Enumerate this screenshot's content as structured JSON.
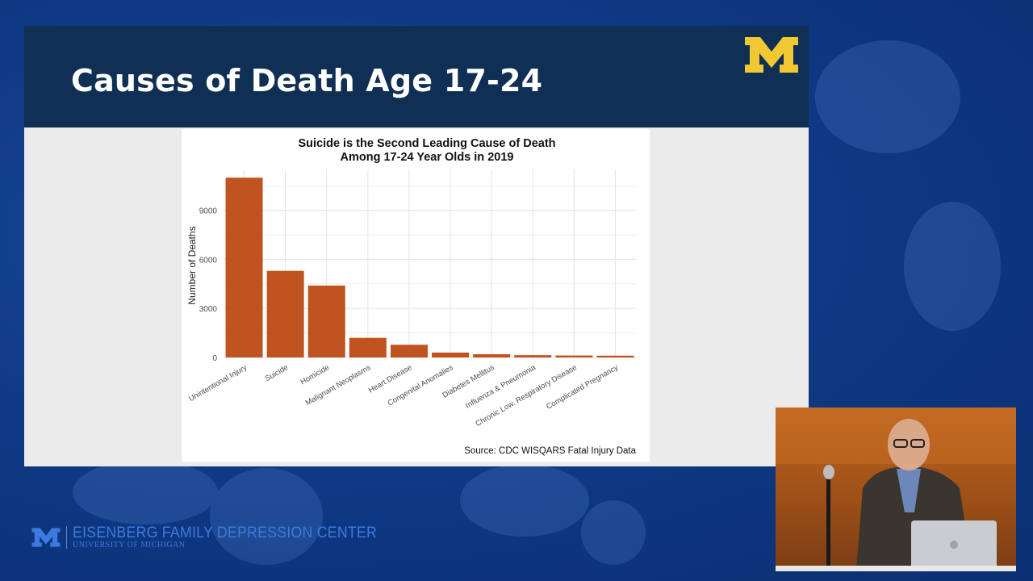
{
  "slide": {
    "title": "Causes of Death Age 17-24"
  },
  "chart_data": {
    "type": "bar",
    "title_line1": "Suicide is the Second Leading Cause of Death",
    "title_line2": "Among 17-24 Year Olds in 2019",
    "xlabel": "",
    "ylabel": "Number of Deaths",
    "source": "Source: CDC WISQARS Fatal Injury Data",
    "categories": [
      "Unintentional Injury",
      "Suicide",
      "Homicide",
      "Malignant Neoplasms",
      "Heart Disease",
      "Congenital Anomalies",
      "Diabetes Mellitus",
      "Influenza & Pneumonia",
      "Chronic Low. Respiratory Disease",
      "Complicated Pregnancy"
    ],
    "values": [
      11000,
      5300,
      4400,
      1200,
      780,
      300,
      200,
      140,
      120,
      110
    ],
    "yticks": [
      0,
      3000,
      6000,
      9000
    ],
    "ylim": [
      0,
      11500
    ],
    "grid": true,
    "bar_color": "#c0531f"
  },
  "footer": {
    "org_name": "EISENBERG FAMILY DEPRESSION CENTER",
    "org_sub": "UNIVERSITY OF MICHIGAN"
  },
  "colors": {
    "header": "#0f2f55",
    "maize": "#f2c832",
    "background": "#0f3a86"
  }
}
